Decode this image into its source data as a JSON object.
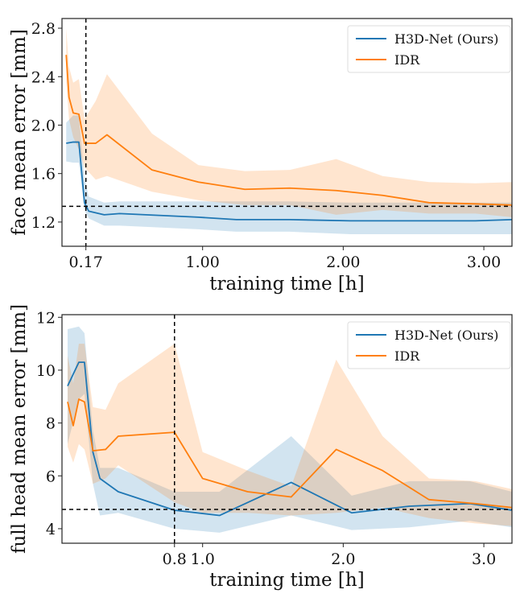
{
  "chart_data": [
    {
      "type": "line",
      "id": "face",
      "title": "",
      "xlabel": "training time [h]",
      "ylabel": "face mean error [mm]",
      "xlim": [
        0.0,
        3.2
      ],
      "ylim": [
        1.0,
        2.88
      ],
      "xticks": [
        0.17,
        1.0,
        2.0,
        3.0
      ],
      "xtick_labels": [
        "0.17",
        "1.00",
        "2.00",
        "3.00"
      ],
      "yticks": [
        1.2,
        1.6,
        2.0,
        2.4,
        2.8
      ],
      "ytick_labels": [
        "1.2",
        "1.6",
        "2.0",
        "2.4",
        "2.8"
      ],
      "grid": false,
      "legend": "top-right",
      "reference_lines": {
        "vertical_x": 0.17,
        "horizontal_y": 1.33
      },
      "series": [
        {
          "name": "H3D-Net (Ours)",
          "color": "#1f77b4",
          "x": [
            0.03,
            0.08,
            0.12,
            0.16,
            0.19,
            0.3,
            0.41,
            0.97,
            1.24,
            1.62,
            2.05,
            2.94,
            3.2
          ],
          "y": [
            1.85,
            1.86,
            1.86,
            1.36,
            1.29,
            1.26,
            1.27,
            1.24,
            1.22,
            1.22,
            1.21,
            1.21,
            1.22
          ],
          "upper": [
            2.02,
            2.08,
            2.08,
            1.56,
            1.41,
            1.36,
            1.37,
            1.37,
            1.37,
            1.37,
            1.36,
            1.36,
            1.36
          ],
          "lower": [
            1.7,
            1.69,
            1.69,
            1.3,
            1.23,
            1.17,
            1.17,
            1.14,
            1.12,
            1.12,
            1.1,
            1.1,
            1.1
          ]
        },
        {
          "name": "IDR",
          "color": "#ff7f0e",
          "x": [
            0.03,
            0.05,
            0.08,
            0.12,
            0.16,
            0.24,
            0.32,
            0.64,
            0.97,
            1.3,
            1.62,
            1.95,
            2.28,
            2.61,
            2.94,
            3.2
          ],
          "y": [
            2.58,
            2.23,
            2.1,
            2.09,
            1.85,
            1.85,
            1.92,
            1.63,
            1.53,
            1.47,
            1.48,
            1.46,
            1.42,
            1.36,
            1.35,
            1.34
          ],
          "upper": [
            2.8,
            2.48,
            2.35,
            2.38,
            2.05,
            2.2,
            2.42,
            1.93,
            1.67,
            1.62,
            1.63,
            1.72,
            1.58,
            1.53,
            1.52,
            1.53
          ],
          "lower": [
            2.35,
            2.05,
            1.9,
            1.8,
            1.65,
            1.55,
            1.58,
            1.45,
            1.38,
            1.34,
            1.34,
            1.26,
            1.3,
            1.27,
            1.27,
            1.24
          ]
        }
      ]
    },
    {
      "type": "line",
      "id": "head",
      "title": "",
      "xlabel": "training time [h]",
      "ylabel": "full head mean error [mm]",
      "xlim": [
        0.0,
        3.2
      ],
      "ylim": [
        3.45,
        12.1
      ],
      "xticks": [
        0.8,
        1.0,
        2.0,
        3.0
      ],
      "xtick_labels": [
        "0.8",
        "1.0",
        "2.0",
        "3.0"
      ],
      "yticks": [
        4,
        6,
        8,
        10,
        12
      ],
      "ytick_labels": [
        "4",
        "6",
        "8",
        "10",
        "12"
      ],
      "grid": false,
      "legend": "top-right",
      "reference_lines": {
        "vertical_x": 0.8,
        "horizontal_y": 4.73
      },
      "series": [
        {
          "name": "H3D-Net (Ours)",
          "color": "#1f77b4",
          "x": [
            0.04,
            0.12,
            0.16,
            0.22,
            0.27,
            0.4,
            0.8,
            1.12,
            1.63,
            2.06,
            2.47,
            2.9,
            3.2
          ],
          "y": [
            9.4,
            10.3,
            10.3,
            6.9,
            5.9,
            5.4,
            4.7,
            4.5,
            5.75,
            4.6,
            4.85,
            4.95,
            4.7
          ],
          "upper": [
            11.55,
            11.65,
            11.4,
            7.7,
            6.3,
            6.3,
            5.4,
            5.4,
            7.5,
            5.25,
            5.8,
            5.8,
            5.4
          ],
          "lower": [
            7.2,
            8.9,
            9.1,
            5.7,
            4.5,
            4.6,
            4.0,
            3.85,
            4.5,
            3.95,
            4.05,
            4.3,
            4.05
          ]
        },
        {
          "name": "IDR",
          "color": "#ff7f0e",
          "x": [
            0.04,
            0.08,
            0.12,
            0.16,
            0.22,
            0.31,
            0.4,
            0.8,
            1.0,
            1.32,
            1.63,
            1.95,
            2.28,
            2.61,
            2.94,
            3.2
          ],
          "y": [
            8.8,
            7.9,
            8.9,
            8.8,
            6.95,
            7.0,
            7.5,
            7.65,
            5.9,
            5.4,
            5.2,
            7.0,
            6.2,
            5.1,
            4.95,
            4.8
          ],
          "upper": [
            10.55,
            9.5,
            11.0,
            11.0,
            8.6,
            8.5,
            9.5,
            11.0,
            6.9,
            6.2,
            5.6,
            10.4,
            7.5,
            5.9,
            5.8,
            5.5
          ],
          "lower": [
            7.1,
            6.5,
            7.2,
            7.0,
            5.7,
            5.9,
            6.4,
            5.0,
            4.6,
            4.6,
            4.5,
            4.6,
            4.8,
            4.4,
            4.2,
            4.1
          ]
        }
      ]
    }
  ]
}
